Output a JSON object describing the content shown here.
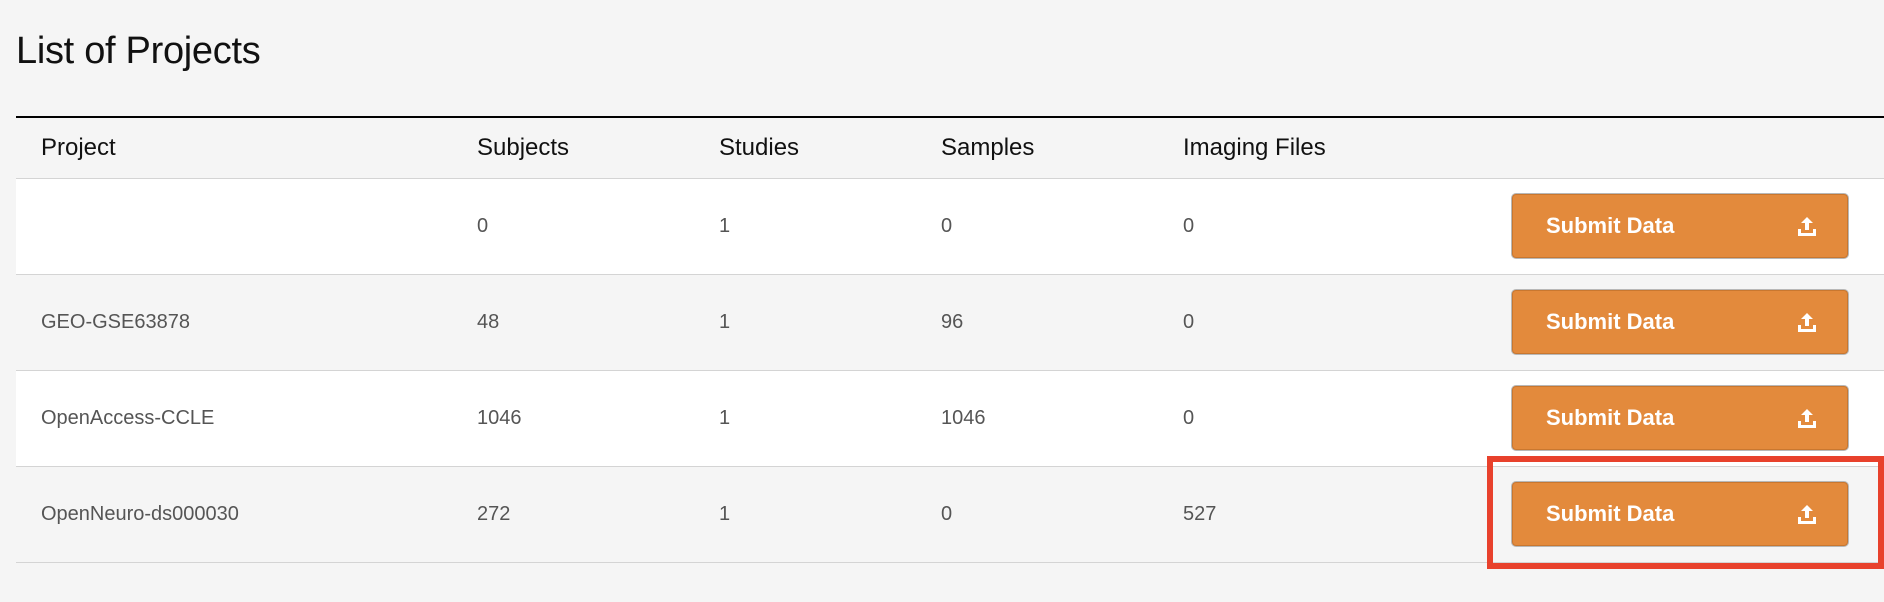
{
  "page": {
    "title": "List of Projects"
  },
  "table": {
    "columns": [
      "Project",
      "Subjects",
      "Studies",
      "Samples",
      "Imaging Files"
    ],
    "rows": [
      {
        "project": "",
        "subjects": "0",
        "studies": "1",
        "samples": "0",
        "imaging_files": "0",
        "action_label": "Submit Data"
      },
      {
        "project": "GEO-GSE63878",
        "subjects": "48",
        "studies": "1",
        "samples": "96",
        "imaging_files": "0",
        "action_label": "Submit Data"
      },
      {
        "project": "OpenAccess-CCLE",
        "subjects": "1046",
        "studies": "1",
        "samples": "1046",
        "imaging_files": "0",
        "action_label": "Submit Data"
      },
      {
        "project": "OpenNeuro-ds000030",
        "subjects": "272",
        "studies": "1",
        "samples": "0",
        "imaging_files": "527",
        "action_label": "Submit Data"
      }
    ]
  },
  "icons": {
    "submit": "upload-icon"
  },
  "colors": {
    "button_bg": "#e38a3c",
    "highlight": "#e8412c",
    "page_bg": "#f5f5f5"
  }
}
